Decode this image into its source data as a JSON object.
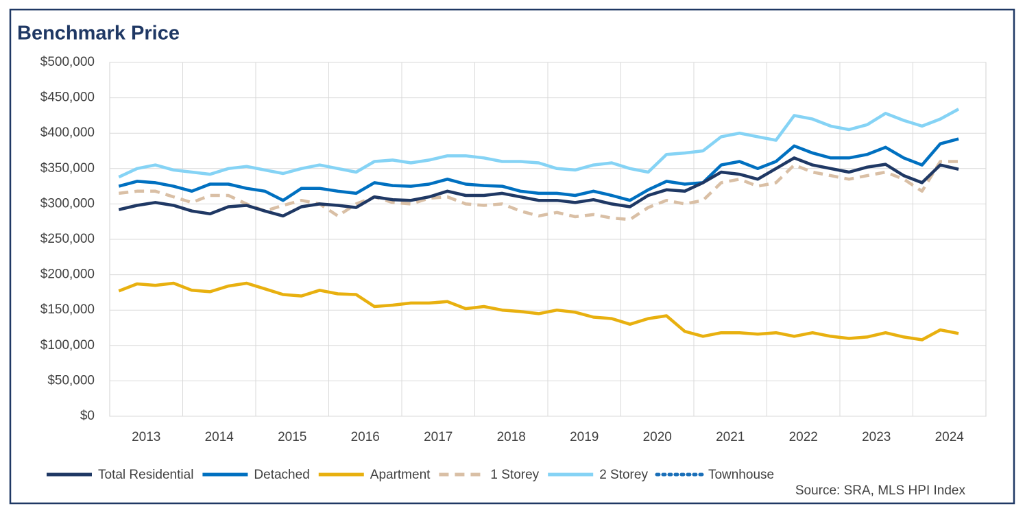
{
  "chart_data": {
    "type": "line",
    "title": "Benchmark Price",
    "source": "Source: SRA, MLS HPI Index",
    "categories": [
      null,
      "2013",
      null,
      null,
      null,
      "2014",
      null,
      null,
      null,
      "2015",
      null,
      null,
      null,
      "2016",
      null,
      null,
      null,
      "2017",
      null,
      null,
      null,
      "2018",
      null,
      null,
      null,
      "2019",
      null,
      null,
      null,
      "2020",
      null,
      null,
      null,
      "2021",
      null,
      null,
      null,
      "2022",
      null,
      null,
      null,
      "2023",
      null,
      null,
      null,
      "2024",
      null
    ],
    "ylim": [
      0,
      500000
    ],
    "yticks": [
      {
        "value": 0,
        "label": "$0"
      },
      {
        "value": 50000,
        "label": "$50,000"
      },
      {
        "value": 100000,
        "label": "$100,000"
      },
      {
        "value": 150000,
        "label": "$150,000"
      },
      {
        "value": 200000,
        "label": "$200,000"
      },
      {
        "value": 250000,
        "label": "$250,000"
      },
      {
        "value": 300000,
        "label": "$300,000"
      },
      {
        "value": 350000,
        "label": "$350,000"
      },
      {
        "value": 400000,
        "label": "$400,000"
      },
      {
        "value": 450000,
        "label": "$450,000"
      },
      {
        "value": 500000,
        "label": "$500,000"
      }
    ],
    "grid": true,
    "legend": "bottom",
    "series": [
      {
        "name": "Total Residential",
        "color": "#1f3864",
        "style": "solid",
        "values": [
          292000,
          298000,
          302000,
          298000,
          290000,
          286000,
          296000,
          298000,
          290000,
          283000,
          296000,
          300000,
          298000,
          295000,
          310000,
          306000,
          305000,
          310000,
          318000,
          312000,
          312000,
          315000,
          310000,
          305000,
          305000,
          302000,
          306000,
          300000,
          296000,
          312000,
          320000,
          318000,
          330000,
          345000,
          342000,
          335000,
          350000,
          365000,
          355000,
          350000,
          345000,
          352000,
          356000,
          340000,
          330000,
          355000,
          349000
        ]
      },
      {
        "name": "Detached",
        "color": "#0070c0",
        "style": "solid",
        "values": [
          325000,
          332000,
          330000,
          325000,
          318000,
          328000,
          328000,
          322000,
          318000,
          305000,
          322000,
          322000,
          318000,
          315000,
          330000,
          326000,
          325000,
          328000,
          335000,
          328000,
          326000,
          325000,
          318000,
          315000,
          315000,
          312000,
          318000,
          312000,
          305000,
          320000,
          332000,
          328000,
          330000,
          355000,
          360000,
          350000,
          360000,
          382000,
          372000,
          365000,
          365000,
          370000,
          380000,
          365000,
          355000,
          385000,
          392000
        ]
      },
      {
        "name": "Apartment",
        "color": "#e8b00f",
        "style": "solid",
        "values": [
          177000,
          187000,
          185000,
          188000,
          178000,
          176000,
          184000,
          188000,
          180000,
          172000,
          170000,
          178000,
          173000,
          172000,
          155000,
          157000,
          160000,
          160000,
          162000,
          152000,
          155000,
          150000,
          148000,
          145000,
          150000,
          147000,
          140000,
          138000,
          130000,
          138000,
          142000,
          120000,
          113000,
          118000,
          118000,
          116000,
          118000,
          113000,
          118000,
          113000,
          110000,
          112000,
          118000,
          112000,
          108000,
          122000,
          117000
        ]
      },
      {
        "name": "1 Storey",
        "color": "#d9bfa5",
        "style": "dashed",
        "values": [
          315000,
          318000,
          318000,
          310000,
          302000,
          312000,
          312000,
          300000,
          290000,
          298000,
          305000,
          300000,
          283000,
          300000,
          310000,
          302000,
          300000,
          308000,
          310000,
          300000,
          298000,
          300000,
          290000,
          283000,
          288000,
          282000,
          285000,
          280000,
          278000,
          295000,
          305000,
          300000,
          305000,
          330000,
          335000,
          325000,
          330000,
          355000,
          345000,
          340000,
          335000,
          340000,
          345000,
          335000,
          318000,
          360000,
          360000
        ]
      },
      {
        "name": "2 Storey",
        "color": "#85d3f5",
        "style": "solid",
        "values": [
          338000,
          350000,
          355000,
          348000,
          345000,
          342000,
          350000,
          353000,
          348000,
          343000,
          350000,
          355000,
          350000,
          345000,
          360000,
          362000,
          358000,
          362000,
          368000,
          368000,
          365000,
          360000,
          360000,
          358000,
          350000,
          348000,
          355000,
          358000,
          350000,
          345000,
          370000,
          372000,
          375000,
          395000,
          400000,
          395000,
          390000,
          425000,
          420000,
          410000,
          405000,
          412000,
          428000,
          418000,
          410000,
          420000,
          434000
        ]
      },
      {
        "name": "Townhouse",
        "color": "#1a6fb8",
        "style": "dotted",
        "values": [
          null,
          null,
          null,
          null,
          null,
          null,
          null,
          null,
          null,
          null,
          null,
          null,
          null,
          null,
          null,
          null,
          null,
          null,
          null,
          null,
          null,
          null,
          null,
          null,
          null,
          null,
          null,
          null,
          null,
          null,
          null,
          null,
          null,
          null,
          null,
          null,
          null,
          null,
          null,
          null,
          null,
          null,
          null,
          null,
          null,
          null,
          null
        ]
      }
    ]
  }
}
